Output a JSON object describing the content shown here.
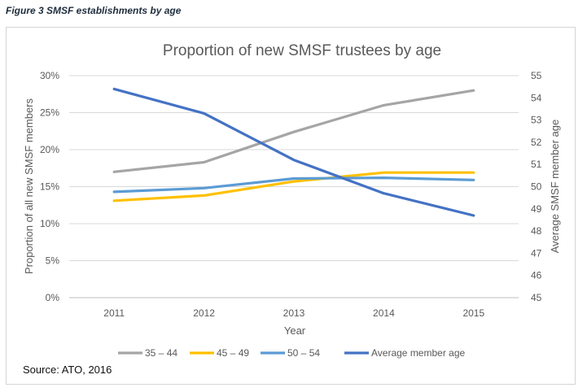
{
  "caption": "Figure 3 SMSF establishments by age",
  "source": "Source: ATO, 2016",
  "chart_data": {
    "type": "line",
    "title": "Proportion of new SMSF trustees by age",
    "xlabel": "Year",
    "ylabel": "Proportion of all new SMSF members",
    "y2label": "Average SMSF member age",
    "categories": [
      "2011",
      "2012",
      "2013",
      "2014",
      "2015"
    ],
    "ylim": [
      0,
      30
    ],
    "yticks": [
      "0%",
      "5%",
      "10%",
      "15%",
      "20%",
      "25%",
      "30%"
    ],
    "y2lim": [
      45,
      55
    ],
    "y2ticks": [
      "45",
      "46",
      "47",
      "48",
      "49",
      "50",
      "51",
      "52",
      "53",
      "54",
      "55"
    ],
    "grid": true,
    "legend_position": "bottom",
    "series": [
      {
        "name": "35 – 44",
        "axis": "left",
        "color": "#a5a5a5",
        "values": [
          17.0,
          18.3,
          22.4,
          26.0,
          28.0
        ]
      },
      {
        "name": "45 – 49",
        "axis": "left",
        "color": "#ffc000",
        "values": [
          13.1,
          13.8,
          15.7,
          16.9,
          16.9
        ]
      },
      {
        "name": "50 – 54",
        "axis": "left",
        "color": "#5b9bd5",
        "values": [
          14.3,
          14.8,
          16.1,
          16.2,
          15.9
        ]
      },
      {
        "name": "Average member age",
        "axis": "right",
        "color": "#4472c4",
        "values": [
          54.4,
          53.3,
          51.2,
          49.7,
          48.7
        ]
      }
    ]
  }
}
